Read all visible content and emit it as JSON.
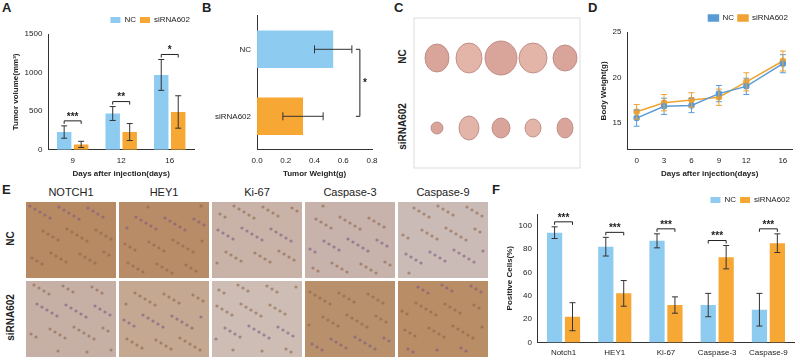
{
  "chart_data": [
    {
      "panel": "A",
      "type": "bar",
      "x_label": "Days after injection(days)",
      "y_label": "Tumor volume(mm³)",
      "categories": [
        "9",
        "12",
        "16"
      ],
      "series": [
        {
          "name": "NC",
          "color": "#8ecbf0",
          "values": [
            230,
            470,
            970
          ],
          "errors": [
            80,
            90,
            200
          ]
        },
        {
          "name": "siRNA602",
          "color": "#f7a734",
          "values": [
            70,
            230,
            490
          ],
          "errors": [
            40,
            110,
            210
          ]
        }
      ],
      "annotations": [
        "***",
        "**",
        "*"
      ],
      "ylim": [
        0,
        1500
      ],
      "yticks": [
        0,
        500,
        1000,
        1500
      ],
      "grid": false,
      "legend": "upper right"
    },
    {
      "panel": "B",
      "type": "bar",
      "orientation": "horizontal",
      "x_label": "Tumor Weight(g)",
      "categories": [
        "NC",
        "siRNA602"
      ],
      "values": [
        0.53,
        0.32
      ],
      "errors": [
        0.13,
        0.14
      ],
      "colors": [
        "#8ecbf0",
        "#f7a734"
      ],
      "annotations": [
        "*"
      ],
      "xlim": [
        0,
        0.8
      ],
      "xticks": [
        {
          "value": 0,
          "label": "0.0"
        },
        {
          "value": 0.2,
          "label": "0.2"
        },
        {
          "value": 0.4,
          "label": "0.4"
        },
        {
          "value": 0.6,
          "label": "0.6"
        },
        {
          "value": 0.8,
          "label": "0.8"
        }
      ],
      "grid": false
    },
    {
      "panel": "D",
      "type": "line",
      "x_label": "Days after injection(days)",
      "y_label": "Body Weight(g)",
      "x": [
        0,
        3,
        6,
        9,
        12,
        16
      ],
      "series": [
        {
          "name": "NC",
          "color": "#5b9bd5",
          "marker": "circle",
          "line_style": "solid",
          "values": [
            15.5,
            16.8,
            16.9,
            18.2,
            19.0,
            21.5
          ],
          "errors": [
            0.9,
            0.9,
            0.8,
            0.9,
            0.9,
            1.0
          ]
        },
        {
          "name": "siRNA602",
          "color": "#f0a330",
          "marker": "circle",
          "line_style": "solid",
          "values": [
            16.2,
            17.2,
            17.5,
            17.8,
            19.5,
            21.8
          ],
          "errors": [
            0.8,
            0.9,
            0.8,
            0.9,
            1.0,
            1.1
          ]
        }
      ],
      "xlim": [
        -1,
        17
      ],
      "xticks": [
        0,
        3,
        6,
        9,
        12,
        16
      ],
      "ylim": [
        12,
        25
      ],
      "yticks": [
        15,
        20,
        25
      ],
      "grid": false,
      "legend": "upper right"
    },
    {
      "panel": "F",
      "type": "bar",
      "y_label": "Positive Cells(%)",
      "categories": [
        "Notch1",
        "HEY1",
        "Ki-67",
        "Caspase-3",
        "Caspase-9"
      ],
      "series": [
        {
          "name": "NC",
          "color": "#8ecbf0",
          "values": [
            94,
            82,
            87,
            32,
            28
          ],
          "errors": [
            5,
            8,
            6,
            10,
            14
          ]
        },
        {
          "name": "siRNA602",
          "color": "#f7a734",
          "values": [
            22,
            42,
            32,
            73,
            85
          ],
          "errors": [
            12,
            11,
            7,
            10,
            8
          ]
        }
      ],
      "annotations": [
        "***",
        "***",
        "***",
        "***",
        "***"
      ],
      "ylim": [
        0,
        110
      ],
      "yticks": [
        0,
        20,
        40,
        60,
        80,
        100
      ],
      "grid": false,
      "legend": "upper right"
    }
  ],
  "image_panels": [
    {
      "panel": "C",
      "row_labels": [
        "NC",
        "siRNA602"
      ]
    },
    {
      "panel": "E",
      "column_labels": [
        "NOTCH1",
        "HEY1",
        "Ki-67",
        "Caspase-3",
        "Caspase-9"
      ],
      "row_labels": [
        "NC",
        "siRNA602"
      ]
    }
  ]
}
